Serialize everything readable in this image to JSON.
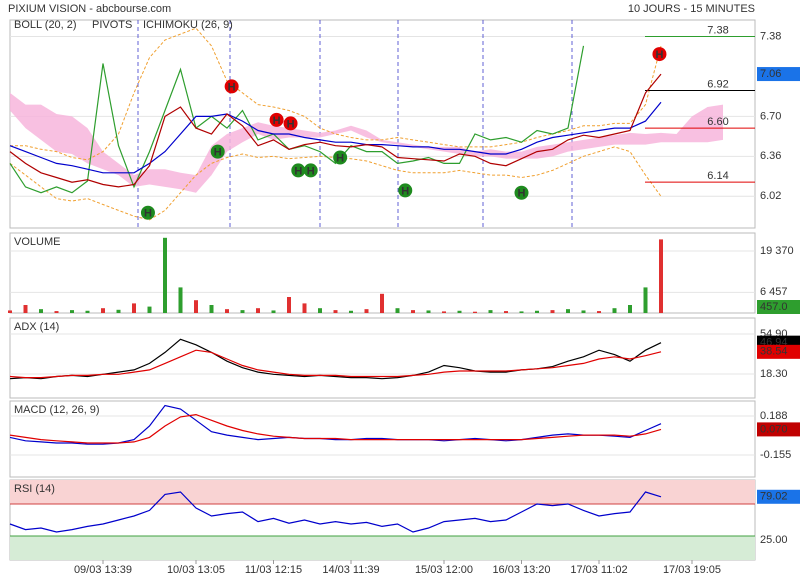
{
  "chart_data": [
    {
      "type": "line",
      "title": "PIXIUM VISION - abcbourse.com",
      "subtitle": "10 JOURS - 15 MINUTES",
      "legend": [
        {
          "name": "BOLL (20, 2)",
          "color": "#f0a030"
        },
        {
          "name": "PIVOTS",
          "color": "#333333"
        },
        {
          "name": "ICHIMOKU (26, 9)",
          "color": "#0000cc"
        }
      ],
      "ylim": [
        5.75,
        7.52
      ],
      "yticks": [
        6.02,
        6.36,
        {
          "value": 6.7,
          "label": "6.70"
        },
        7.38
      ],
      "grid": true,
      "series": [
        {
          "color": "#2e9e2e",
          "values": [
            6.3,
            6.1,
            6.05,
            6.1,
            6.05,
            6.15,
            7.15,
            6.45,
            6.1,
            6.4,
            6.75,
            7.1,
            6.6,
            6.7,
            6.6,
            6.75,
            6.5,
            6.55,
            6.42,
            6.45,
            6.4,
            6.3,
            6.45,
            6.4,
            6.4,
            6.3,
            6.32,
            6.35,
            6.3,
            6.3,
            6.55,
            6.5,
            6.52,
            6.48,
            6.58,
            6.55,
            6.6,
            7.3,
            null,
            null,
            null,
            null,
            null,
            null,
            null,
            null,
            null,
            null
          ]
        },
        {
          "color": "#0000cc",
          "values": [
            6.45,
            6.4,
            6.35,
            6.3,
            6.28,
            6.25,
            6.22,
            6.22,
            6.22,
            6.3,
            6.4,
            6.55,
            6.7,
            6.7,
            6.72,
            6.66,
            6.58,
            6.55,
            6.55,
            6.52,
            6.5,
            6.48,
            6.48,
            6.46,
            6.46,
            6.45,
            6.44,
            6.44,
            6.42,
            6.42,
            6.4,
            6.38,
            6.38,
            6.42,
            6.48,
            6.52,
            6.54,
            6.56,
            6.58,
            6.6,
            6.6,
            6.66,
            6.82,
            null,
            null,
            null,
            null,
            null
          ]
        },
        {
          "color": "#b00000",
          "values": [
            6.4,
            6.3,
            6.22,
            6.18,
            6.14,
            6.16,
            6.12,
            6.1,
            6.12,
            6.28,
            6.7,
            6.78,
            6.6,
            6.55,
            6.72,
            6.62,
            6.45,
            6.5,
            6.42,
            6.46,
            6.48,
            6.45,
            6.44,
            6.46,
            6.44,
            6.35,
            6.34,
            6.33,
            6.32,
            6.38,
            6.36,
            6.3,
            6.28,
            6.34,
            6.4,
            6.42,
            6.5,
            6.54,
            6.52,
            6.55,
            6.58,
            6.9,
            7.06,
            null,
            null,
            null,
            null,
            null
          ]
        }
      ],
      "bands": {
        "color": "#f0a030",
        "upper": [
          6.45,
          6.45,
          6.42,
          6.4,
          6.35,
          6.33,
          6.4,
          6.55,
          6.9,
          7.2,
          7.35,
          7.4,
          7.45,
          7.3,
          7.0,
          6.9,
          6.8,
          6.78,
          6.75,
          6.7,
          6.6,
          6.55,
          6.52,
          6.5,
          6.5,
          6.52,
          6.5,
          6.48,
          6.46,
          6.44,
          6.44,
          6.44,
          6.46,
          6.48,
          6.52,
          6.55,
          6.58,
          6.62,
          6.62,
          6.64,
          6.64,
          6.8,
          7.3,
          null,
          null,
          null,
          null,
          null
        ],
        "lower": [
          6.3,
          6.2,
          6.1,
          6.0,
          5.98,
          6.0,
          5.95,
          5.9,
          5.85,
          5.82,
          5.9,
          6.05,
          6.2,
          6.3,
          6.35,
          6.38,
          6.35,
          6.36,
          6.34,
          6.35,
          6.36,
          6.35,
          6.34,
          6.32,
          6.28,
          6.24,
          6.22,
          6.22,
          6.22,
          6.24,
          6.22,
          6.2,
          6.2,
          6.18,
          6.2,
          6.24,
          6.3,
          6.36,
          6.4,
          6.44,
          6.4,
          6.2,
          6.02,
          null,
          null,
          null,
          null,
          null
        ]
      },
      "cloud": {
        "color": "#f7b5dc",
        "upper": [
          6.9,
          6.8,
          6.8,
          6.72,
          6.7,
          6.6,
          6.4,
          6.3,
          6.2,
          6.25,
          6.25,
          6.22,
          6.2,
          6.45,
          6.55,
          6.6,
          6.65,
          6.62,
          6.6,
          6.58,
          6.56,
          6.58,
          6.62,
          6.58,
          6.5,
          6.48,
          6.46,
          6.44,
          6.44,
          6.44,
          6.4,
          6.42,
          6.4,
          6.4,
          6.44,
          6.46,
          6.48,
          6.5,
          6.52,
          6.54,
          6.56,
          6.55,
          6.56,
          6.55,
          6.7,
          6.78,
          6.8,
          null
        ],
        "lower": [
          6.75,
          6.6,
          6.5,
          6.4,
          6.38,
          6.3,
          6.25,
          6.2,
          6.1,
          6.12,
          6.1,
          6.08,
          6.05,
          6.2,
          6.4,
          6.48,
          6.55,
          6.5,
          6.52,
          6.52,
          6.52,
          6.55,
          6.58,
          6.52,
          6.48,
          6.46,
          6.44,
          6.42,
          6.4,
          6.38,
          6.36,
          6.36,
          6.34,
          6.34,
          6.34,
          6.36,
          6.4,
          6.42,
          6.44,
          6.46,
          6.46,
          6.46,
          6.48,
          6.48,
          6.48,
          6.48,
          6.5,
          null
        ]
      },
      "levels": [
        {
          "value": 7.38,
          "label": "7.38",
          "color": "#2e9e2e"
        },
        {
          "value": 6.92,
          "label": "6.92",
          "color": "#000000"
        },
        {
          "value": 6.6,
          "label": "6.60",
          "color": "#e00000"
        },
        {
          "value": 6.14,
          "label": "6.14",
          "color": "#e00000"
        }
      ],
      "badges": [
        {
          "value": 7.06,
          "label": "7.06",
          "color": "#1a73e8"
        }
      ],
      "markers": [
        {
          "label": "H",
          "x": 14.3,
          "y": 6.955,
          "color": "#e00000"
        },
        {
          "label": "H",
          "x": 17.2,
          "y": 6.67,
          "color": "#e00000"
        },
        {
          "label": "H",
          "x": 18.1,
          "y": 6.64,
          "color": "#e00000"
        },
        {
          "label": "H",
          "x": 41.9,
          "y": 7.23,
          "color": "#e00000"
        },
        {
          "label": "H",
          "x": 8.9,
          "y": 5.88,
          "color": "#1e8a1e"
        },
        {
          "label": "H",
          "x": 13.4,
          "y": 6.4,
          "color": "#1e8a1e"
        },
        {
          "label": "H",
          "x": 18.6,
          "y": 6.24,
          "color": "#1e8a1e"
        },
        {
          "label": "H",
          "x": 19.4,
          "y": 6.24,
          "color": "#1e8a1e"
        },
        {
          "label": "H",
          "x": 21.3,
          "y": 6.35,
          "color": "#1e8a1e"
        },
        {
          "label": "H",
          "x": 25.5,
          "y": 6.07,
          "color": "#1e8a1e"
        },
        {
          "label": "H",
          "x": 33,
          "y": 6.05,
          "color": "#1e8a1e"
        }
      ]
    },
    {
      "type": "bar",
      "title": "VOLUME",
      "title_color": "#2e9e2e",
      "ylim": [
        0,
        25000
      ],
      "yticks": [
        {
          "value": 6457,
          "label": "6 457"
        },
        {
          "value": 19370,
          "label": "19 370"
        }
      ],
      "grid": true,
      "values": [
        800,
        2500,
        1200,
        600,
        900,
        700,
        1500,
        1000,
        3000,
        2000,
        23500,
        8000,
        4000,
        2500,
        1200,
        900,
        1500,
        800,
        5000,
        3000,
        1500,
        900,
        700,
        1200,
        6000,
        1500,
        900,
        800,
        500,
        700,
        400,
        900,
        600,
        500,
        700,
        900,
        1200,
        800,
        600,
        1500,
        2500,
        8000,
        23000,
        null,
        null,
        null,
        null,
        null
      ],
      "colors": [
        "#e03030",
        "#e03030",
        "#2e9e2e",
        "#e03030",
        "#2e9e2e",
        "#2e9e2e",
        "#e03030",
        "#2e9e2e",
        "#e03030",
        "#2e9e2e",
        "#2e9e2e",
        "#2e9e2e",
        "#e03030",
        "#2e9e2e",
        "#e03030",
        "#2e9e2e",
        "#e03030",
        "#2e9e2e",
        "#e03030",
        "#e03030",
        "#2e9e2e",
        "#e03030",
        "#2e9e2e",
        "#e03030",
        "#e03030",
        "#2e9e2e",
        "#e03030",
        "#2e9e2e",
        "#e03030",
        "#2e9e2e",
        "#e03030",
        "#2e9e2e",
        "#e03030",
        "#2e9e2e",
        "#2e9e2e",
        "#e03030",
        "#2e9e2e",
        "#2e9e2e",
        "#e03030",
        "#2e9e2e",
        "#2e9e2e",
        "#2e9e2e",
        "#e03030",
        null,
        null,
        null,
        null,
        null
      ],
      "badges": [
        {
          "value": 457,
          "label": "457.0",
          "color": "#2e9e2e"
        }
      ]
    },
    {
      "type": "line",
      "title": "ADX (14)",
      "title_color": "#000000",
      "ylim": [
        -3.7,
        69.5
      ],
      "yticks": [
        {
          "value": 18.3,
          "label": "18.30"
        },
        {
          "value": 54.9,
          "label": "54.90"
        }
      ],
      "grid": true,
      "series": [
        {
          "color": "#000000",
          "values": [
            14,
            15,
            14,
            16,
            17,
            16,
            18,
            20,
            22,
            28,
            38,
            50,
            45,
            38,
            30,
            24,
            20,
            18,
            17,
            16,
            17,
            16,
            15,
            15,
            14,
            15,
            17,
            20,
            26,
            24,
            21,
            20,
            20,
            22,
            23,
            25,
            30,
            34,
            40,
            36,
            30,
            40,
            46.94,
            null,
            null,
            null,
            null,
            null
          ]
        },
        {
          "color": "#e00000",
          "values": [
            16,
            15,
            15,
            16,
            17,
            17,
            18,
            18,
            20,
            22,
            28,
            34,
            40,
            38,
            32,
            26,
            22,
            20,
            18,
            17,
            17,
            17,
            16,
            16,
            16,
            16,
            17,
            18,
            20,
            21,
            21,
            21,
            21,
            22,
            23,
            24,
            26,
            28,
            32,
            34,
            32,
            35,
            38.54,
            null,
            null,
            null,
            null,
            null
          ]
        }
      ],
      "badges": [
        {
          "value": 46.94,
          "label": "46.94",
          "color": "#000000"
        },
        {
          "value": 38.54,
          "label": "38.54",
          "color": "#e00000"
        }
      ]
    },
    {
      "type": "line",
      "title": "MACD (12, 26, 9)",
      "title_color": "#000080",
      "ylim": [
        -0.349,
        0.32
      ],
      "yticks": [
        -0.155,
        0.188
      ],
      "grid": true,
      "series": [
        {
          "color": "#0000cc",
          "values": [
            0.0,
            -0.03,
            -0.04,
            -0.05,
            -0.05,
            -0.06,
            -0.06,
            -0.05,
            -0.02,
            0.1,
            0.28,
            0.25,
            0.15,
            0.05,
            0.02,
            0.0,
            -0.02,
            -0.01,
            0.0,
            -0.01,
            -0.01,
            -0.02,
            -0.02,
            -0.01,
            -0.01,
            -0.02,
            -0.02,
            -0.02,
            -0.03,
            -0.02,
            -0.01,
            -0.02,
            -0.03,
            -0.02,
            0.0,
            0.02,
            0.03,
            0.02,
            0.02,
            0.01,
            0.0,
            0.06,
            0.12,
            null,
            null,
            null,
            null,
            null
          ]
        },
        {
          "color": "#e00000",
          "values": [
            0.02,
            0.0,
            -0.02,
            -0.03,
            -0.04,
            -0.05,
            -0.05,
            -0.05,
            -0.04,
            0.0,
            0.1,
            0.18,
            0.2,
            0.15,
            0.1,
            0.06,
            0.03,
            0.01,
            0.0,
            -0.01,
            -0.01,
            -0.01,
            -0.02,
            -0.02,
            -0.02,
            -0.02,
            -0.02,
            -0.02,
            -0.02,
            -0.02,
            -0.02,
            -0.02,
            -0.02,
            -0.02,
            -0.01,
            0.0,
            0.01,
            0.02,
            0.02,
            0.02,
            0.01,
            0.03,
            0.07,
            null,
            null,
            null,
            null,
            null
          ]
        }
      ],
      "badges": [
        {
          "value": 0.07,
          "label": "0.070",
          "color": "#c00000"
        }
      ]
    },
    {
      "type": "line",
      "title": "RSI (14)",
      "title_color": "#000080",
      "ylim": [
        0,
        100
      ],
      "yticks": [
        {
          "value": 25,
          "label": "25.00"
        }
      ],
      "zones": [
        70,
        30
      ],
      "categories": [
        null,
        null,
        null,
        null,
        null,
        null,
        "09/03 13:39",
        null,
        null,
        null,
        null,
        null,
        "10/03 13:05",
        null,
        null,
        null,
        null,
        "11/03 12:15",
        null,
        null,
        null,
        null,
        "14/03 11:39",
        null,
        null,
        null,
        null,
        null,
        "15/03 12:00",
        null,
        null,
        null,
        null,
        "16/03 13:20",
        null,
        null,
        null,
        null,
        "17/03 11:02",
        null,
        null,
        null,
        null,
        null,
        "17/03 19:05",
        null,
        null,
        null
      ],
      "series": [
        {
          "color": "#0000cc",
          "values": [
            45,
            38,
            40,
            35,
            38,
            42,
            45,
            50,
            55,
            62,
            82,
            85,
            65,
            55,
            58,
            60,
            48,
            52,
            46,
            50,
            45,
            48,
            45,
            47,
            42,
            45,
            35,
            40,
            48,
            50,
            52,
            48,
            50,
            60,
            70,
            68,
            70,
            62,
            55,
            58,
            60,
            85,
            79.02,
            null,
            null,
            null,
            null,
            null
          ]
        }
      ],
      "badges": [
        {
          "value": 79.02,
          "label": "79.02",
          "color": "#1a73e8"
        }
      ]
    }
  ]
}
